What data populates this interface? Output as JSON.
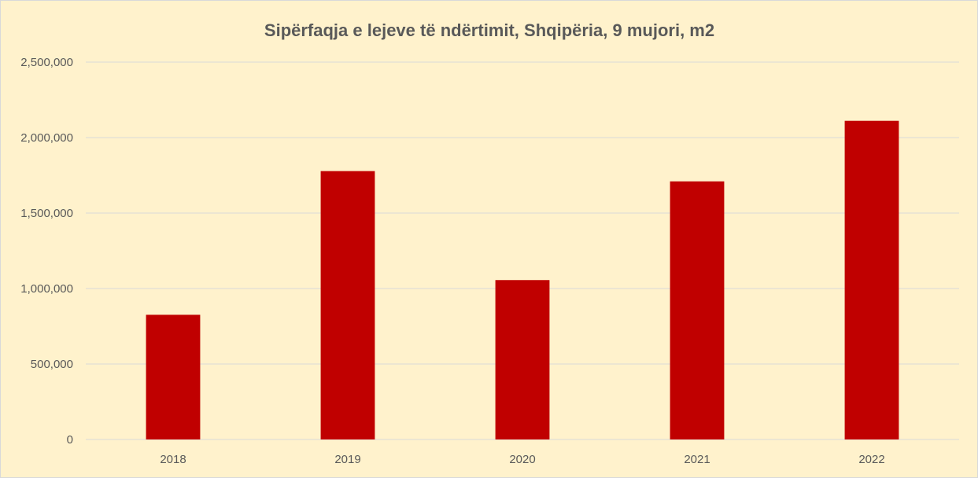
{
  "chart_data": {
    "type": "bar",
    "title": "Sipërfaqja e lejeve të ndërtimit, Shqipëria, 9 mujori, m2",
    "xlabel": "",
    "ylabel": "",
    "categories": [
      "2018",
      "2019",
      "2020",
      "2021",
      "2022"
    ],
    "values": [
      826000,
      1778000,
      1056000,
      1710000,
      2111000
    ],
    "ylim": [
      0,
      2500000
    ],
    "yticks": [
      0,
      500000,
      1000000,
      1500000,
      2000000,
      2500000
    ],
    "ytick_labels": [
      "0",
      "500,000",
      "1,000,000",
      "1,500,000",
      "2,000,000",
      "2,500,000"
    ],
    "grid": true,
    "legend": "none",
    "colors": {
      "bar": "#c00000",
      "background": "#fff2cc",
      "gridline": "#d9d9d9",
      "text": "#595959"
    }
  }
}
